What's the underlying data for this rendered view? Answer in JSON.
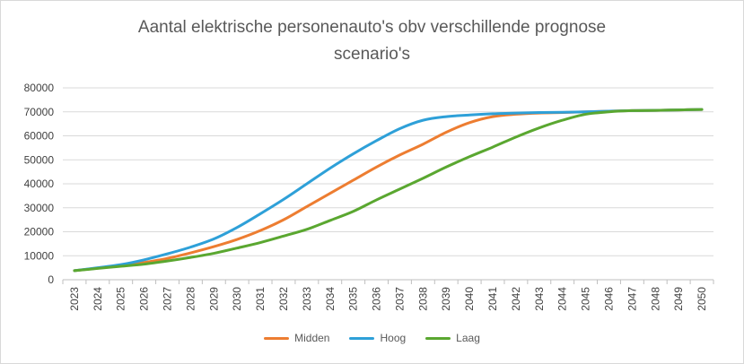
{
  "chart_data": {
    "type": "line",
    "title_line1": "Aantal elektrische personenauto's obv verschillende prognose",
    "title_line2": "scenario's",
    "x": [
      "2023",
      "2024",
      "2025",
      "2026",
      "2027",
      "2028",
      "2029",
      "2030",
      "2031",
      "2032",
      "2033",
      "2034",
      "2035",
      "2036",
      "2037",
      "2038",
      "2039",
      "2040",
      "2041",
      "2042",
      "2043",
      "2044",
      "2045",
      "2046",
      "2047",
      "2048",
      "2049",
      "2050"
    ],
    "ylim": [
      0,
      80000
    ],
    "yticks": [
      "0",
      "10000",
      "20000",
      "30000",
      "40000",
      "50000",
      "60000",
      "70000",
      "80000"
    ],
    "grid": true,
    "legend_position": "bottom",
    "series": [
      {
        "name": "Midden",
        "color": "#ed7d31",
        "values": [
          3800,
          4800,
          5800,
          7200,
          8900,
          11200,
          13800,
          16800,
          20500,
          25000,
          30500,
          36000,
          41500,
          47000,
          52000,
          56500,
          61500,
          65500,
          68000,
          69000,
          69500,
          69700,
          70000,
          70300,
          70500,
          70600,
          70800,
          71000
        ]
      },
      {
        "name": "Hoog",
        "color": "#2ea0d8",
        "values": [
          3800,
          5000,
          6300,
          8300,
          10800,
          13600,
          17000,
          21800,
          27500,
          33500,
          40000,
          46500,
          52500,
          58000,
          63000,
          66500,
          68000,
          68700,
          69200,
          69500,
          69700,
          69800,
          70000,
          70300,
          70500,
          70600,
          70800,
          71000
        ]
      },
      {
        "name": "Laag",
        "color": "#5aa730",
        "values": [
          3800,
          4700,
          5600,
          6500,
          7800,
          9300,
          11000,
          13200,
          15500,
          18200,
          21000,
          24700,
          28500,
          33300,
          37800,
          42300,
          47000,
          51300,
          55300,
          59500,
          63300,
          66500,
          69000,
          70000,
          70500,
          70600,
          70800,
          71000
        ]
      }
    ]
  }
}
